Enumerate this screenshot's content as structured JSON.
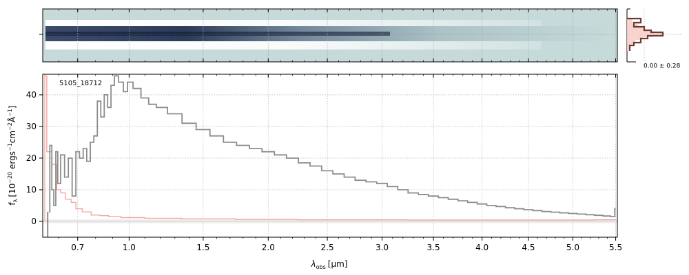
{
  "chart_data": [
    {
      "type": "heatmap",
      "panel": "2d-spectrum",
      "description_colors": {
        "background": "#c6dada",
        "trace_dark": "#1b2a4a",
        "trace_light": "#ffffff"
      },
      "trace_profile": {
        "wavelength_um": [
          0.52,
          0.6,
          0.7,
          0.8,
          0.9,
          1.0,
          1.1,
          1.3,
          1.5,
          1.8,
          2.2,
          2.6,
          3.0,
          3.5,
          4.0,
          4.5,
          5.0,
          5.5
        ],
        "relative_intensity": [
          0.3,
          0.35,
          0.5,
          0.85,
          1.0,
          0.95,
          0.9,
          0.8,
          0.7,
          0.6,
          0.5,
          0.42,
          0.35,
          0.28,
          0.22,
          0.18,
          0.15,
          0.12
        ]
      }
    },
    {
      "type": "line",
      "panel": "profile",
      "annotation": "0.00 ± 0.28",
      "colors": {
        "fill": "#f4c7c1",
        "line": "#6d3b2e"
      }
    },
    {
      "type": "line",
      "panel": "1d-spectrum",
      "label": "5105_18712",
      "xlabel_main": "λ",
      "xlabel_sub": "obs",
      "xlabel_unit": "[μm]",
      "ylabel": "f_λ [10^-20 ergs^-1cm^-2Å^-1]",
      "ylabel_parts": {
        "base": "f",
        "sub": "λ",
        "text": "[10",
        "exp1": "−20",
        "mid1": " ergs",
        "exp2": "−1",
        "mid2": "cm",
        "exp3": "−2",
        "mid3": "Å",
        "exp4": "−1",
        "end": "]"
      },
      "xticks": [
        0.7,
        1.0,
        1.5,
        2.0,
        2.5,
        3.0,
        3.5,
        4.0,
        4.5,
        5.0,
        5.5
      ],
      "xtick_labels": [
        "0.7",
        "1.0",
        "1.5",
        "2.0",
        "2.5",
        "3.0",
        "3.5",
        "4.0",
        "4.5",
        "5.0",
        "5.5"
      ],
      "yticks": [
        0,
        10,
        20,
        30,
        40
      ],
      "ytick_labels": [
        "0",
        "10",
        "20",
        "30",
        "40"
      ],
      "ylim": [
        -5,
        46.5
      ],
      "xlim": [
        0.52,
        5.52
      ],
      "grid": true,
      "series": [
        {
          "color": "#8c8c8c",
          "x": [
            0.55,
            0.56,
            0.57,
            0.58,
            0.59,
            0.6,
            0.62,
            0.64,
            0.66,
            0.68,
            0.7,
            0.72,
            0.74,
            0.76,
            0.78,
            0.8,
            0.82,
            0.84,
            0.86,
            0.88,
            0.9,
            0.92,
            0.95,
            0.98,
            1.0,
            1.05,
            1.1,
            1.15,
            1.2,
            1.3,
            1.4,
            1.5,
            1.6,
            1.7,
            1.8,
            1.9,
            2.0,
            2.1,
            2.2,
            2.3,
            2.4,
            2.5,
            2.6,
            2.7,
            2.8,
            2.9,
            3.0,
            3.1,
            3.2,
            3.3,
            3.4,
            3.5,
            3.6,
            3.7,
            3.8,
            3.9,
            4.0,
            4.1,
            4.2,
            4.3,
            4.4,
            4.5,
            4.6,
            4.7,
            4.8,
            4.9,
            5.0,
            5.1,
            5.2,
            5.3,
            5.4,
            5.48,
            5.5
          ],
          "y": [
            3,
            24,
            10,
            5,
            22,
            12,
            21,
            14,
            20,
            8,
            22,
            20,
            23,
            19,
            25,
            27,
            38,
            33,
            40,
            36,
            43,
            46,
            44,
            41,
            44,
            42,
            39,
            37,
            36,
            34,
            31,
            29,
            27,
            25,
            24,
            23,
            22,
            21,
            20,
            18.5,
            17.5,
            16,
            15,
            14,
            13,
            12.5,
            12,
            11,
            10,
            9,
            8.5,
            8,
            7.5,
            7,
            6.5,
            6,
            5.5,
            5,
            4.7,
            4.3,
            4,
            3.7,
            3.4,
            3.1,
            2.9,
            2.7,
            2.5,
            2.3,
            2.1,
            1.9,
            1.7,
            1.5,
            4
          ]
        },
        {
          "color": "#f4a7a0",
          "x": [
            0.53,
            0.55,
            0.58,
            0.6,
            0.62,
            0.65,
            0.68,
            0.7,
            0.75,
            0.8,
            0.85,
            0.9,
            1.0,
            1.2,
            1.5,
            2.0,
            2.5,
            3.0,
            3.5,
            4.0,
            4.5,
            5.0,
            5.5
          ],
          "y": [
            46,
            22,
            18,
            10,
            9,
            7,
            6,
            4,
            3,
            2,
            1.8,
            1.5,
            1.2,
            1.0,
            0.8,
            0.6,
            0.5,
            0.5,
            0.4,
            0.4,
            0.4,
            0.4,
            0.5
          ]
        }
      ]
    }
  ]
}
